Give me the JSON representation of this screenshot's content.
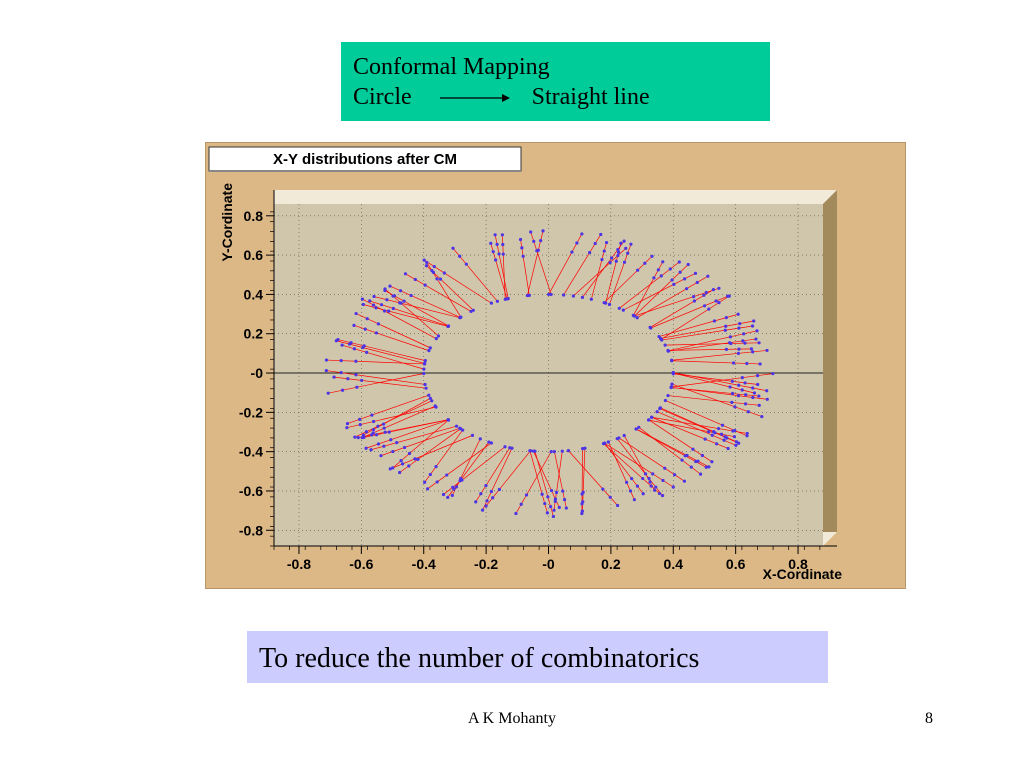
{
  "slide": {
    "title_line1": "Conformal Mapping",
    "title_left": "Circle",
    "title_right": "Straight line",
    "arrow_icon": "right-arrow-icon",
    "note": "To reduce the number of combinatorics",
    "author": "A K Mohanty",
    "page_number": "8",
    "colors": {
      "title_bg": "#00cc99",
      "note_bg": "#ccccff",
      "frame_bg": "#ddb887",
      "plot_bg": "#cfc6ab",
      "marker": "#4c33e6",
      "line": "#ff0000"
    }
  },
  "chart_data": {
    "type": "scatter",
    "title": "X-Y distributions after CM",
    "xlabel": "X-Cordinate",
    "ylabel": "Y-Cordinate",
    "xlim": [
      -0.88,
      0.88
    ],
    "ylim": [
      -0.88,
      0.86
    ],
    "xticks": [
      "-0.8",
      "-0.6",
      "-0.4",
      "-0.2",
      "-0",
      "0.2",
      "0.4",
      "0.6",
      "0.8"
    ],
    "xtick_values": [
      -0.8,
      -0.6,
      -0.4,
      -0.2,
      0,
      0.2,
      0.4,
      0.6,
      0.8
    ],
    "yticks": [
      "0.8",
      "0.6",
      "0.4",
      "0.2",
      "-0",
      "-0.2",
      "-0.4",
      "-0.6",
      "-0.8"
    ],
    "ytick_values": [
      0.8,
      0.6,
      0.4,
      0.2,
      0,
      -0.2,
      -0.4,
      -0.6,
      -0.8
    ],
    "grid": true,
    "zero_line": true,
    "track_pattern": {
      "description_of_data": "straight track segments radiating outward from an inner ring to an outer ring",
      "inner_radius_x": 0.4,
      "inner_radius_y": 0.4,
      "outer_radius_x": 0.72,
      "outer_radius_y": 0.73,
      "angle_step_deg": 9,
      "points_per_track": 4
    }
  }
}
